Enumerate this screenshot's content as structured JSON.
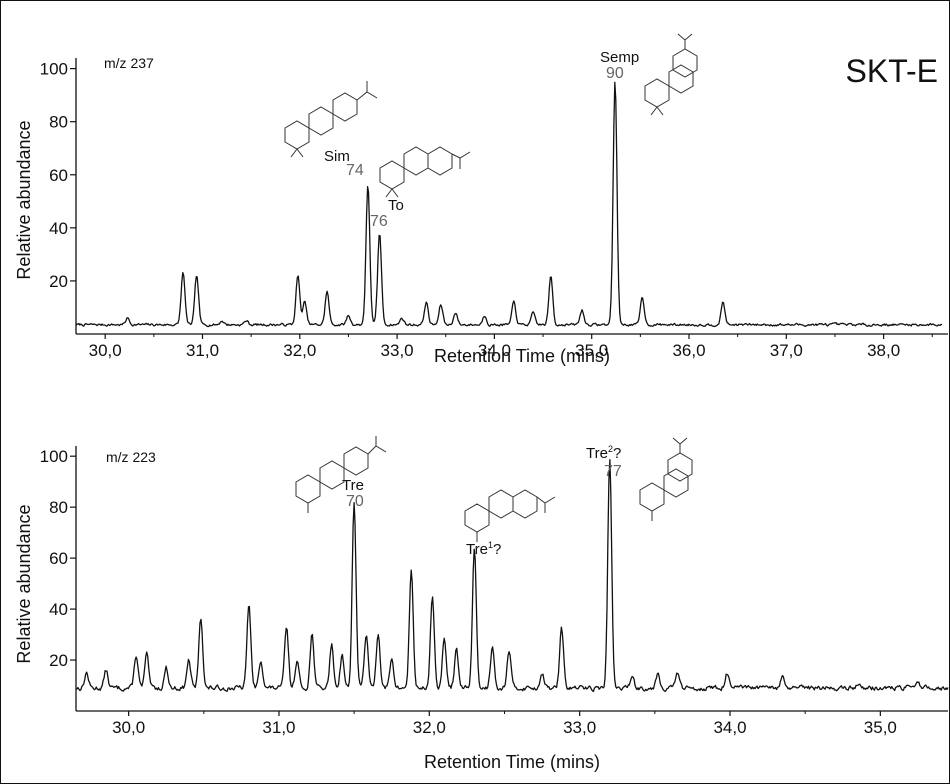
{
  "title": "SKT-E",
  "chart_data": [
    {
      "type": "line",
      "ion_label": "m/z 237",
      "xlabel": "Retention Time (mins)",
      "ylabel": "Relative abundance",
      "xlim": [
        29.7,
        38.6
      ],
      "ylim": [
        0,
        104
      ],
      "xticks": [
        30.0,
        31.0,
        32.0,
        33.0,
        34.0,
        35.0,
        36.0,
        37.0,
        38.0
      ],
      "xtick_labels": [
        "30,0",
        "31,0",
        "32,0",
        "33,0",
        "34,0",
        "35,0",
        "36,0",
        "37,0",
        "38,0"
      ],
      "yticks": [
        20,
        40,
        60,
        80,
        100
      ],
      "ytick_labels": [
        "20",
        "40",
        "60",
        "80",
        "100"
      ],
      "baseline": 3.5,
      "peaks": [
        {
          "x": 30.23,
          "y": 6
        },
        {
          "x": 30.8,
          "y": 23
        },
        {
          "x": 30.94,
          "y": 22
        },
        {
          "x": 31.2,
          "y": 5
        },
        {
          "x": 31.45,
          "y": 5
        },
        {
          "x": 31.98,
          "y": 22
        },
        {
          "x": 32.05,
          "y": 12
        },
        {
          "x": 32.28,
          "y": 16
        },
        {
          "x": 32.5,
          "y": 7
        },
        {
          "x": 32.7,
          "y": 56
        },
        {
          "x": 32.82,
          "y": 38
        },
        {
          "x": 33.05,
          "y": 6
        },
        {
          "x": 33.3,
          "y": 12
        },
        {
          "x": 33.45,
          "y": 11
        },
        {
          "x": 33.6,
          "y": 8
        },
        {
          "x": 33.9,
          "y": 7
        },
        {
          "x": 34.2,
          "y": 12
        },
        {
          "x": 34.4,
          "y": 8
        },
        {
          "x": 34.58,
          "y": 22
        },
        {
          "x": 34.9,
          "y": 9
        },
        {
          "x": 35.24,
          "y": 95
        },
        {
          "x": 35.52,
          "y": 14
        },
        {
          "x": 36.35,
          "y": 12
        }
      ],
      "annotations": [
        {
          "name": "Sim",
          "number": "74",
          "x": 32.7
        },
        {
          "name": "To",
          "number": "76",
          "x": 32.82
        },
        {
          "name": "Semp",
          "number": "90",
          "x": 35.24
        }
      ]
    },
    {
      "type": "line",
      "ion_label": "m/z 223",
      "xlabel": "Retention Time (mins)",
      "ylabel": "Relative abundance",
      "xlim": [
        29.65,
        35.45
      ],
      "ylim": [
        0,
        104
      ],
      "xticks": [
        30.0,
        31.0,
        32.0,
        33.0,
        34.0,
        35.0
      ],
      "xtick_labels": [
        "30,0",
        "31,0",
        "32,0",
        "33,0",
        "34,0",
        "35,0"
      ],
      "yticks": [
        20,
        40,
        60,
        80,
        100
      ],
      "ytick_labels": [
        "20",
        "40",
        "60",
        "80",
        "100"
      ],
      "baseline": 9,
      "peaks": [
        {
          "x": 29.72,
          "y": 15
        },
        {
          "x": 29.85,
          "y": 16
        },
        {
          "x": 30.05,
          "y": 22
        },
        {
          "x": 30.12,
          "y": 22
        },
        {
          "x": 30.25,
          "y": 17
        },
        {
          "x": 30.4,
          "y": 20
        },
        {
          "x": 30.48,
          "y": 37
        },
        {
          "x": 30.8,
          "y": 42
        },
        {
          "x": 30.88,
          "y": 20
        },
        {
          "x": 31.05,
          "y": 33
        },
        {
          "x": 31.12,
          "y": 20
        },
        {
          "x": 31.22,
          "y": 30
        },
        {
          "x": 31.35,
          "y": 26
        },
        {
          "x": 31.42,
          "y": 22
        },
        {
          "x": 31.5,
          "y": 82
        },
        {
          "x": 31.58,
          "y": 30
        },
        {
          "x": 31.66,
          "y": 31
        },
        {
          "x": 31.75,
          "y": 20
        },
        {
          "x": 31.88,
          "y": 55
        },
        {
          "x": 32.02,
          "y": 44
        },
        {
          "x": 32.1,
          "y": 28
        },
        {
          "x": 32.18,
          "y": 24
        },
        {
          "x": 32.3,
          "y": 64
        },
        {
          "x": 32.42,
          "y": 26
        },
        {
          "x": 32.53,
          "y": 24
        },
        {
          "x": 32.75,
          "y": 15
        },
        {
          "x": 32.88,
          "y": 32
        },
        {
          "x": 33.2,
          "y": 99
        },
        {
          "x": 33.35,
          "y": 14
        },
        {
          "x": 33.52,
          "y": 15
        },
        {
          "x": 33.65,
          "y": 15
        },
        {
          "x": 33.98,
          "y": 15
        },
        {
          "x": 34.35,
          "y": 13
        },
        {
          "x": 34.85,
          "y": 11
        },
        {
          "x": 35.25,
          "y": 12
        },
        {
          "x": 35.4,
          "y": 9
        }
      ],
      "annotations": [
        {
          "name": "Tre",
          "number": "70",
          "x": 31.5
        },
        {
          "name": "Tre",
          "superscript": "1",
          "suffix": "?",
          "x": 32.3
        },
        {
          "name": "Tre",
          "superscript": "2",
          "suffix": "?",
          "number": "77",
          "x": 33.2
        }
      ]
    }
  ]
}
